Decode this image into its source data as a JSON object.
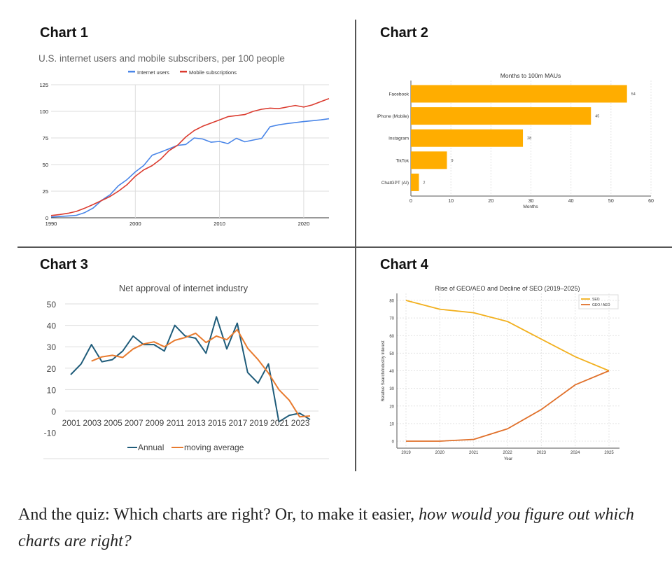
{
  "headings": [
    "Chart 1",
    "Chart 2",
    "Chart 3",
    "Chart 4"
  ],
  "quiz": {
    "part1": "And the quiz: Which charts are right? Or, to make it easier, ",
    "part2": "how would you figure out which charts are right?"
  },
  "chart_data": [
    {
      "type": "line",
      "title": "U.S. internet users and mobile subscribers, per 100 people",
      "legend_position": "top",
      "grid": true,
      "x": [
        1990,
        1991,
        1992,
        1993,
        1994,
        1995,
        1996,
        1997,
        1998,
        1999,
        2000,
        2001,
        2002,
        2003,
        2004,
        2005,
        2006,
        2007,
        2008,
        2009,
        2010,
        2011,
        2012,
        2013,
        2014,
        2015,
        2016,
        2017,
        2018,
        2019,
        2020,
        2021,
        2022,
        2023
      ],
      "xticks": [
        1990,
        2000,
        2010,
        2020
      ],
      "yticks": [
        0,
        25,
        50,
        75,
        100,
        125
      ],
      "ylim": [
        0,
        125
      ],
      "series": [
        {
          "name": "Internet users",
          "color": "#4a86e8",
          "values": [
            0.8,
            1.2,
            1.7,
            2.3,
            4.9,
            9.2,
            16.4,
            21.6,
            30.1,
            35.8,
            43.1,
            49.1,
            58.8,
            61.7,
            64.8,
            68,
            68.9,
            75,
            74,
            71,
            71.7,
            69.7,
            74.7,
            71.4,
            73,
            74.6,
            85.5,
            87.3,
            88.5,
            89.4,
            90.4,
            91.2,
            92,
            93
          ]
        },
        {
          "name": "Mobile subscriptions",
          "color": "#db3b2f",
          "values": [
            2.1,
            3,
            4.2,
            6,
            9,
            12.5,
            16.2,
            20,
            25,
            31,
            39,
            45,
            49,
            55,
            63,
            68,
            76,
            82,
            86,
            89,
            92,
            95,
            96,
            97,
            100,
            102,
            103,
            102.5,
            104,
            105.5,
            104,
            106,
            109,
            112
          ]
        }
      ]
    },
    {
      "type": "bar",
      "orientation": "horizontal",
      "title": "Months to 100m MAUs",
      "xlabel": "Months",
      "xlim": [
        0,
        60
      ],
      "xticks": [
        0,
        10,
        20,
        30,
        40,
        50,
        60
      ],
      "grid": true,
      "color": "#ffad00",
      "categories": [
        "Facebook",
        "iPhone (Mobile)",
        "Instagram",
        "TikTok",
        "ChatGPT (AI)"
      ],
      "values": [
        54,
        45,
        28,
        9,
        2
      ]
    },
    {
      "type": "line",
      "title": "Net approval of internet industry",
      "ylim": [
        -10,
        50
      ],
      "yticks": [
        -10,
        0,
        10,
        20,
        30,
        40,
        50
      ],
      "legend_position": "bottom",
      "grid": true,
      "x": [
        2001,
        2002,
        2003,
        2004,
        2005,
        2006,
        2007,
        2008,
        2009,
        2010,
        2011,
        2012,
        2013,
        2014,
        2015,
        2016,
        2017,
        2018,
        2019,
        2020,
        2021,
        2022,
        2023,
        2024
      ],
      "xticks": [
        2001,
        2003,
        2005,
        2007,
        2009,
        2011,
        2013,
        2015,
        2017,
        2019,
        2021,
        2023
      ],
      "series": [
        {
          "name": "Annual",
          "color": "#1f5c7a",
          "values": [
            17,
            22,
            31,
            23,
            24,
            28,
            35,
            31,
            31,
            28,
            40,
            35,
            34,
            27,
            44,
            29,
            41,
            18,
            13,
            22,
            -5,
            -2,
            -1,
            -4
          ]
        },
        {
          "name": "moving average",
          "color": "#e87b2f",
          "values": [
            null,
            null,
            23.3,
            25.3,
            26,
            25,
            29,
            31.3,
            32.3,
            30,
            33,
            34.3,
            36.3,
            32,
            35,
            33.3,
            38,
            29.3,
            24,
            17.7,
            10,
            5,
            -2.7,
            -2.3
          ]
        }
      ]
    },
    {
      "type": "line",
      "title": "Rise of GEO/AEO and Decline of SEO (2019–2025)",
      "xlabel": "Year",
      "ylabel": "Relative Search/Industry Interest",
      "ylim": [
        -3,
        83
      ],
      "yticks": [
        0,
        10,
        20,
        30,
        40,
        50,
        60,
        70,
        80
      ],
      "legend_position": "top-right",
      "grid": true,
      "x": [
        2019,
        2020,
        2021,
        2022,
        2023,
        2024,
        2025
      ],
      "series": [
        {
          "name": "SEO",
          "color": "#f2b01e",
          "values": [
            80,
            75,
            73,
            68,
            58,
            48,
            40
          ]
        },
        {
          "name": "GEO / AEO",
          "color": "#e0702a",
          "values": [
            0,
            0,
            1,
            7,
            18,
            32,
            40
          ]
        }
      ]
    }
  ]
}
